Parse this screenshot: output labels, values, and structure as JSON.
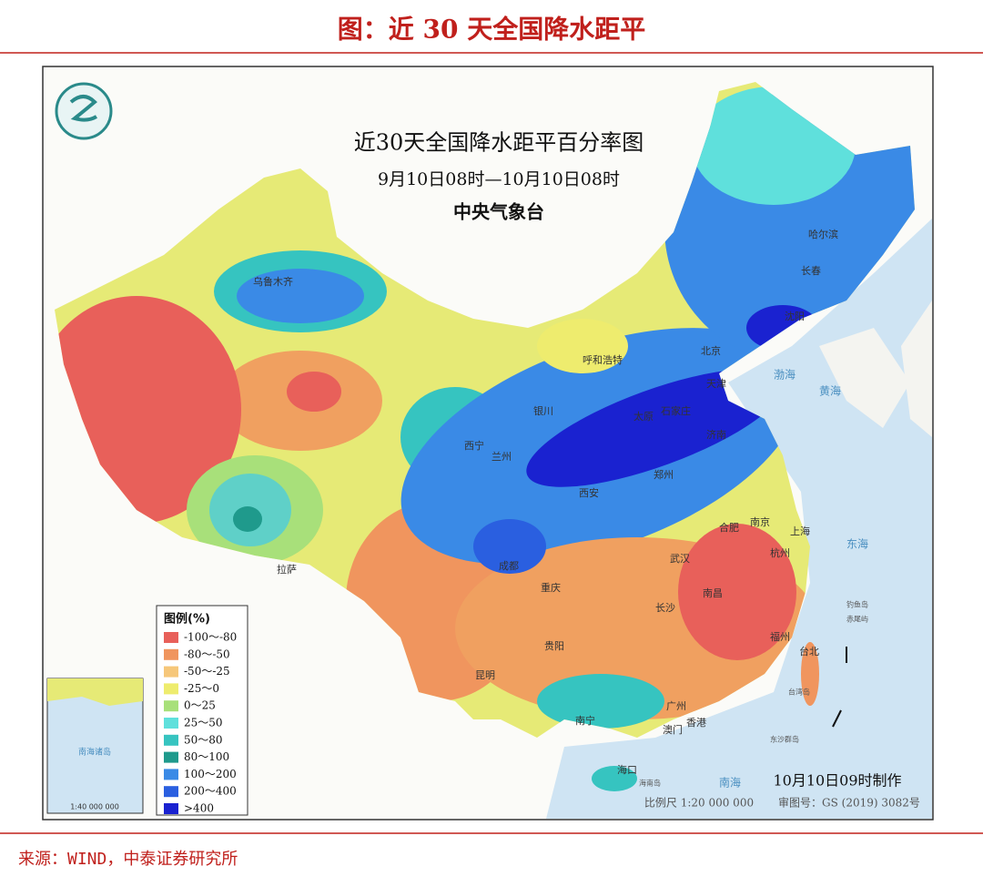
{
  "header": {
    "title": "图：近 30 天全国降水距平"
  },
  "map": {
    "title": "近30天全国降水距平百分率图",
    "period": "9月10日08时—10月10日08时",
    "issuer": "中央气象台",
    "legend": {
      "title": "图例(%)",
      "items": [
        {
          "label": "-100～-80",
          "color": "#e8605a"
        },
        {
          "label": "-80～-50",
          "color": "#f0955e"
        },
        {
          "label": "-50～-25",
          "color": "#f6c77a"
        },
        {
          "label": "-25～0",
          "color": "#eeec6e"
        },
        {
          "label": "0～25",
          "color": "#a8e07a"
        },
        {
          "label": "25～50",
          "color": "#5fe0dc"
        },
        {
          "label": "50～80",
          "color": "#36c4c0"
        },
        {
          "label": "80～100",
          "color": "#1f9a8c"
        },
        {
          "label": "100～200",
          "color": "#3a8ae6"
        },
        {
          "label": "200～400",
          "color": "#2a5fe0"
        },
        {
          "label": ">400",
          "color": "#1a22d0"
        }
      ]
    },
    "cities": [
      "乌鲁木齐",
      "哈尔滨",
      "长春",
      "沈阳",
      "北京",
      "天津",
      "呼和浩特",
      "石家庄",
      "太原",
      "济南",
      "银川",
      "西宁",
      "兰州",
      "郑州",
      "西安",
      "合肥",
      "南京",
      "上海",
      "杭州",
      "武汉",
      "成都",
      "重庆",
      "长沙",
      "南昌",
      "拉萨",
      "贵阳",
      "昆明",
      "福州",
      "台北",
      "广州",
      "南宁",
      "香港",
      "澳门",
      "海口"
    ],
    "seas": [
      "渤海",
      "黄海",
      "东海",
      "南海"
    ],
    "islands": [
      "钓鱼岛",
      "赤尾屿",
      "台湾岛",
      "东沙群岛",
      "海南岛"
    ],
    "made_time": "10月10日09时制作",
    "scale": "比例尺 1:20 000 000",
    "approval": "审图号：GS (2019) 3082号",
    "inset": {
      "title": "南海诸岛",
      "scale": "1:40 000 000"
    }
  },
  "source": "来源：WIND，中泰证券研究所"
}
